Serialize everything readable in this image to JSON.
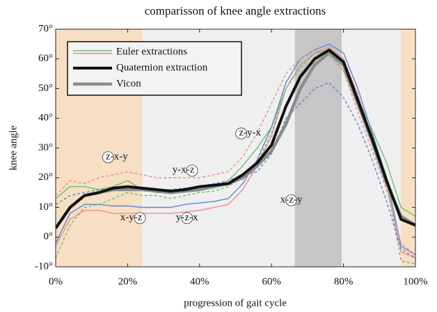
{
  "chart_data": {
    "type": "line",
    "title": "comparisson of knee angle extractions",
    "xlabel": "progression of gait cycle",
    "ylabel": "knee angle",
    "xlim": [
      0,
      100
    ],
    "ylim": [
      -10,
      70
    ],
    "xticks": [
      {
        "value": 0,
        "label": "0%"
      },
      {
        "value": 20,
        "label": "20%"
      },
      {
        "value": 40,
        "label": "40%"
      },
      {
        "value": 60,
        "label": "60%"
      },
      {
        "value": 80,
        "label": "80%"
      },
      {
        "value": 100,
        "label": "100%"
      }
    ],
    "yticks": [
      {
        "value": -10,
        "label": "-10°"
      },
      {
        "value": 0,
        "label": "0°"
      },
      {
        "value": 10,
        "label": "10°"
      },
      {
        "value": 20,
        "label": "20°"
      },
      {
        "value": 30,
        "label": "30°"
      },
      {
        "value": 40,
        "label": "40°"
      },
      {
        "value": 50,
        "label": "50°"
      },
      {
        "value": 60,
        "label": "60°"
      },
      {
        "value": 70,
        "label": "70°"
      }
    ],
    "regions": [
      {
        "start": 0,
        "end": 24,
        "color": "#f6dfc3"
      },
      {
        "start": 24,
        "end": 96,
        "color": "#efefef"
      },
      {
        "start": 96,
        "end": 100,
        "color": "#f6dfc3"
      },
      {
        "start": 66.5,
        "end": 79.5,
        "color": "#c6c6c6"
      }
    ],
    "x": [
      0,
      4,
      8,
      12,
      16,
      20,
      24,
      28,
      32,
      36,
      40,
      44,
      48,
      52,
      56,
      60,
      64,
      68,
      72,
      76,
      80,
      84,
      88,
      92,
      96,
      100
    ],
    "series": [
      {
        "color": "#6cc067",
        "width": 1.4,
        "dashed": false,
        "values": [
          13,
          17,
          17,
          16,
          17,
          19,
          16,
          15,
          15,
          16,
          16,
          17,
          19,
          24,
          30,
          37,
          50,
          58,
          62,
          63,
          58,
          47,
          36,
          25,
          10,
          7
        ]
      },
      {
        "color": "#5b86d6",
        "width": 1.4,
        "dashed": false,
        "values": [
          -2,
          8,
          11,
          11,
          10.5,
          10.5,
          10,
          10,
          10,
          11,
          11.5,
          12,
          13,
          18,
          26,
          37,
          52,
          60,
          63,
          65,
          62,
          50,
          35,
          20,
          -3,
          -6
        ]
      },
      {
        "color": "#f08a8a",
        "width": 1.4,
        "dashed": false,
        "values": [
          -3,
          6,
          9,
          9,
          8,
          8,
          8,
          8,
          8,
          8.5,
          9,
          10,
          11,
          16,
          24,
          34,
          50,
          58,
          62,
          64,
          60,
          48,
          33,
          18,
          -5,
          -7
        ]
      },
      {
        "color": "#6cc067",
        "width": 1.4,
        "dashed": true,
        "values": [
          -7,
          4,
          10,
          11,
          13,
          15,
          14,
          14,
          13,
          14,
          15,
          15.5,
          17,
          20,
          25,
          35,
          50,
          57,
          62,
          62,
          56,
          44,
          32,
          18,
          -8,
          -9
        ]
      },
      {
        "color": "#5b86d6",
        "width": 1.4,
        "dashed": true,
        "values": [
          11,
          14,
          15,
          16,
          16,
          17,
          16,
          16,
          16,
          16.5,
          17,
          18,
          19,
          21,
          22,
          28,
          40,
          45,
          50,
          52,
          47,
          38,
          26,
          12,
          -4,
          -7
        ]
      },
      {
        "color": "#f08a8a",
        "width": 1.4,
        "dashed": true,
        "values": [
          14,
          19,
          18,
          20,
          21,
          22,
          21,
          20,
          20,
          20,
          20,
          21,
          22,
          27,
          35,
          45,
          55,
          60,
          63,
          61,
          56,
          42,
          29,
          16,
          -2,
          -6
        ]
      },
      {
        "color": "#8c8c8c",
        "width": 4.5,
        "dashed": false,
        "values": [
          3,
          10,
          14,
          15,
          16,
          16,
          16,
          15.5,
          15,
          15.5,
          16,
          17,
          18,
          20,
          24,
          29,
          38,
          50,
          58,
          62,
          58,
          45,
          32,
          18,
          7,
          4
        ]
      },
      {
        "color": "#111111",
        "width": 4,
        "dashed": false,
        "values": [
          3,
          10,
          14,
          15,
          16.5,
          17,
          16.5,
          16,
          15.5,
          16,
          17,
          17.5,
          18,
          21,
          25,
          31,
          44,
          54,
          60,
          63,
          59,
          46,
          33,
          19,
          6,
          4
        ]
      }
    ],
    "legend": {
      "position": "upper left",
      "entries": [
        {
          "label": "Euler extractions",
          "colors": [
            "#6cc067",
            "#f08a8a"
          ],
          "width": 1.6
        },
        {
          "label": "Quaternion extraction",
          "colors": [
            "#111111"
          ],
          "width": 4
        },
        {
          "label": "Vicon",
          "colors": [
            "#8c8c8c"
          ],
          "width": 4.5
        }
      ]
    },
    "annotations": [
      {
        "text": "z-x-y",
        "circled": 0
      },
      {
        "text": "y-x-z",
        "circled": 4
      },
      {
        "text": "z-y-x",
        "circled": 0
      },
      {
        "text": "x-z-y",
        "circled": 2
      },
      {
        "text": "x-y-z",
        "circled": 4
      },
      {
        "text": "y-z-x",
        "circled": 2
      }
    ]
  }
}
